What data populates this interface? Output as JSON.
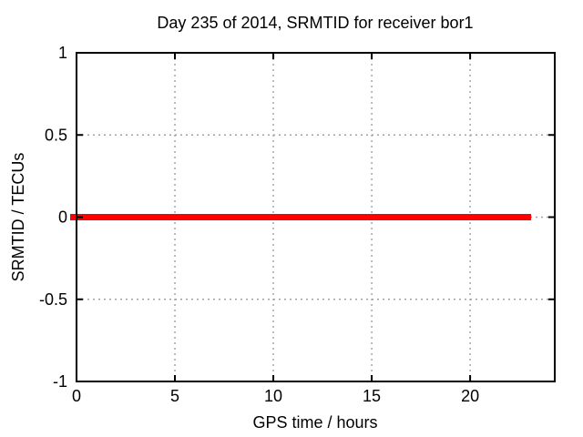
{
  "chart_data": {
    "type": "line",
    "title": "Day 235 of 2014, SRMTID for receiver bor1",
    "xlabel": "GPS time / hours",
    "ylabel": "SRMTID / TECUs",
    "xlim": [
      0,
      24.3
    ],
    "ylim": [
      -1,
      1
    ],
    "x_ticks": [
      0,
      5,
      10,
      15,
      20
    ],
    "x_tick_labels": [
      "0",
      "5",
      "10",
      "15",
      "20"
    ],
    "y_ticks": [
      -1,
      -0.5,
      0,
      0.5,
      1
    ],
    "y_tick_labels": [
      "-1",
      "-0.5",
      "0",
      "0.5",
      "1"
    ],
    "grid": true,
    "grid_style": "dotted",
    "legend": "none",
    "colors": {
      "background": "#ffffff",
      "border": "#000000",
      "text": "#000000",
      "grid": "#a0a0a0",
      "series": "#ff0000"
    },
    "series": [
      {
        "name": "SRMTID",
        "color": "#ff0000",
        "line_width": 7,
        "y_value": 0,
        "x_start": 0,
        "x_end": 23.1
      }
    ]
  }
}
